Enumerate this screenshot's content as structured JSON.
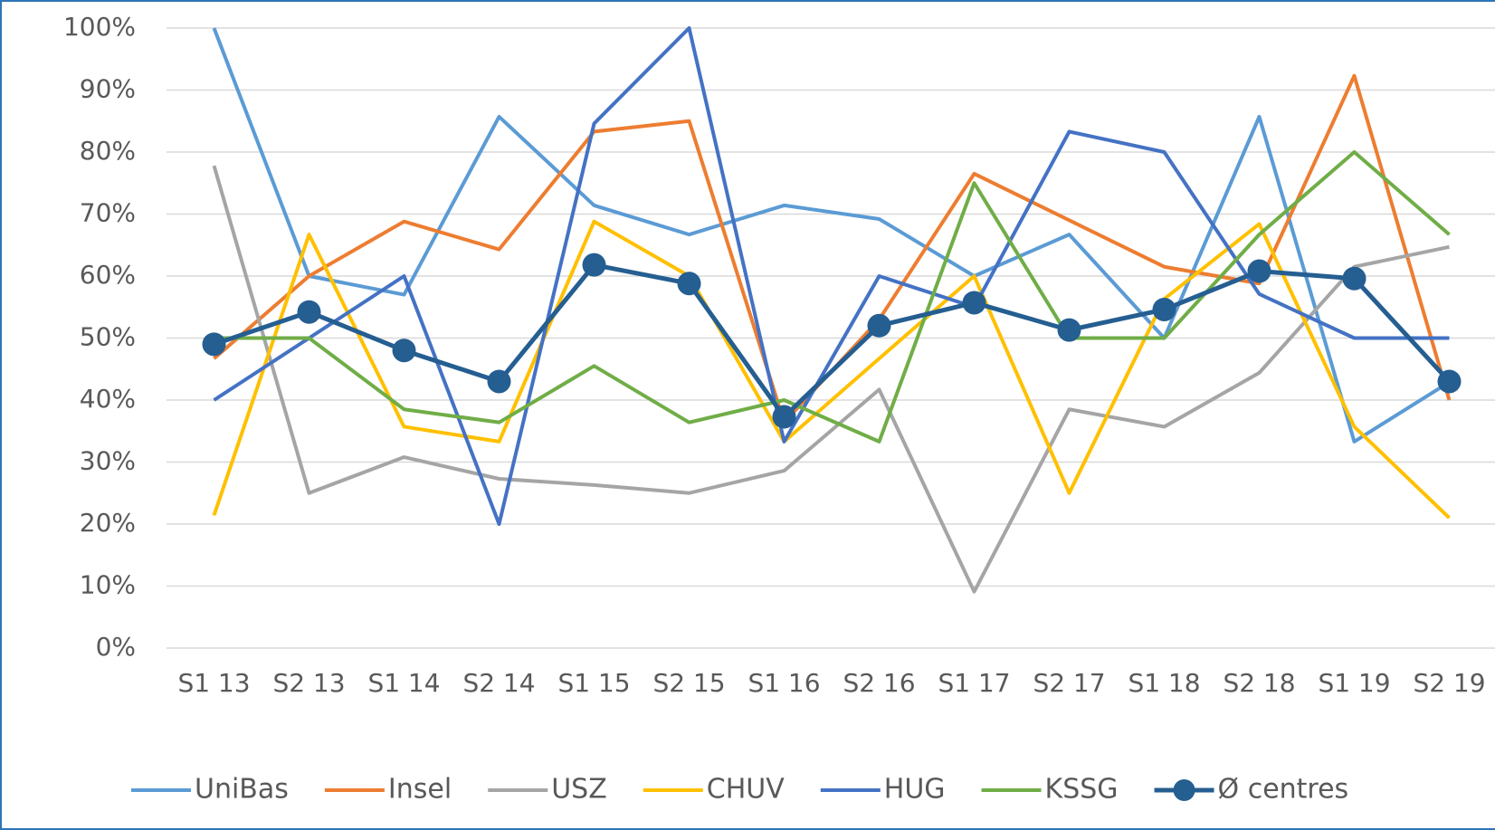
{
  "chart_data": {
    "type": "line",
    "categories": [
      "S1 13",
      "S2 13",
      "S1 14",
      "S2 14",
      "S1 15",
      "S2 15",
      "S1 16",
      "S2 16",
      "S1 17",
      "S2 17",
      "S1 18",
      "S2 18",
      "S1 19",
      "S2 19"
    ],
    "series": [
      {
        "name": "UniBas",
        "color": "#5b9bd5",
        "values": [
          100,
          60,
          57,
          85.7,
          71.4,
          66.7,
          71.4,
          69.2,
          60,
          66.7,
          50,
          85.7,
          33.3,
          42.9
        ]
      },
      {
        "name": "Insel",
        "color": "#ed7d31",
        "values": [
          46.7,
          60,
          68.8,
          64.3,
          83.3,
          85,
          36.4,
          53,
          76.5,
          69,
          61.5,
          58.8,
          92.3,
          40
        ]
      },
      {
        "name": "USZ",
        "color": "#a5a5a5",
        "values": [
          77.8,
          25,
          30.8,
          27.3,
          26.3,
          25,
          28.6,
          41.7,
          9.1,
          38.5,
          35.7,
          44.4,
          61.5,
          64.7
        ]
      },
      {
        "name": "CHUV",
        "color": "#ffc000",
        "values": [
          21.4,
          66.7,
          35.7,
          33.3,
          68.8,
          60,
          33.3,
          46.7,
          60,
          25,
          56.3,
          68.4,
          35.7,
          21
        ]
      },
      {
        "name": "HUG",
        "color": "#4472c4",
        "values": [
          40,
          50,
          60,
          20,
          84.6,
          100,
          33.3,
          60,
          55,
          83.3,
          80,
          57.1,
          50,
          50
        ]
      },
      {
        "name": "KSSG",
        "color": "#70ad47",
        "values": [
          50,
          50,
          38.5,
          36.4,
          45.5,
          36.4,
          40,
          33.3,
          75,
          50,
          50,
          66.7,
          80,
          66.7
        ]
      },
      {
        "name": "Ø centres",
        "color": "#255e91",
        "marker": true,
        "values": [
          49,
          54.2,
          48,
          43,
          61.8,
          58.8,
          37.3,
          52,
          55.7,
          51.3,
          54.6,
          60.8,
          59.6,
          43
        ]
      }
    ],
    "ylim": [
      0,
      100
    ],
    "yticks": [
      {
        "value": 0,
        "label": "0%"
      },
      {
        "value": 10,
        "label": "10%"
      },
      {
        "value": 20,
        "label": "20%"
      },
      {
        "value": 30,
        "label": "30%"
      },
      {
        "value": 40,
        "label": "40%"
      },
      {
        "value": 50,
        "label": "50%"
      },
      {
        "value": 60,
        "label": "60%"
      },
      {
        "value": 70,
        "label": "70%"
      },
      {
        "value": 80,
        "label": "80%"
      },
      {
        "value": 90,
        "label": "90%"
      },
      {
        "value": 100,
        "label": "100%"
      }
    ],
    "grid": true,
    "legend": "bottom"
  }
}
